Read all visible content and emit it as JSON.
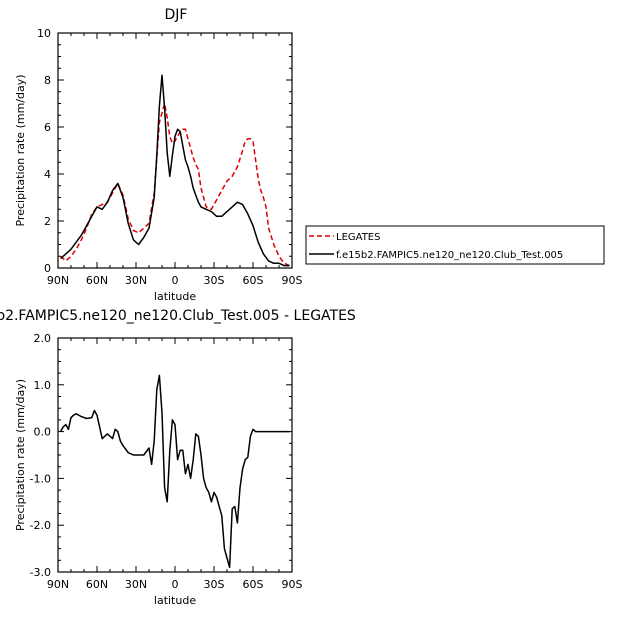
{
  "chart_data": [
    {
      "type": "line",
      "title": "DJF",
      "xlabel": "latitude",
      "ylabel": "Precipitation rate (mm/day)",
      "x_ticks": [
        "90N",
        "60N",
        "30N",
        "0",
        "30S",
        "60S",
        "90S"
      ],
      "y_ticks": [
        "0",
        "2",
        "4",
        "6",
        "8",
        "10"
      ],
      "xlim": [
        90,
        -90
      ],
      "ylim": [
        0,
        10
      ],
      "legend_position": "right-outside",
      "series": [
        {
          "name": "LEGATES",
          "color": "#dd0000",
          "style": "dashed",
          "x": [
            88,
            84,
            80,
            76,
            72,
            68,
            64,
            60,
            56,
            52,
            48,
            44,
            40,
            36,
            32,
            28,
            24,
            20,
            16,
            12,
            8,
            6,
            4,
            2,
            0,
            -2,
            -4,
            -6,
            -8,
            -10,
            -12,
            -14,
            -16,
            -18,
            -20,
            -24,
            -28,
            -32,
            -36,
            -40,
            -44,
            -48,
            -52,
            -54,
            -56,
            -58,
            -60,
            -62,
            -64,
            -66,
            -68,
            -70,
            -72,
            -76,
            -80,
            -84,
            -88
          ],
          "y": [
            0.5,
            0.3,
            0.5,
            0.8,
            1.2,
            1.7,
            2.3,
            2.6,
            2.7,
            2.8,
            3.2,
            3.6,
            3.1,
            2.1,
            1.6,
            1.5,
            1.7,
            1.9,
            3.2,
            6.2,
            7.0,
            6.4,
            5.6,
            5.3,
            5.4,
            5.6,
            5.8,
            5.9,
            5.9,
            5.5,
            5.1,
            4.7,
            4.4,
            4.2,
            3.4,
            2.6,
            2.5,
            2.9,
            3.3,
            3.7,
            3.9,
            4.3,
            5.0,
            5.4,
            5.5,
            5.5,
            5.4,
            4.6,
            3.8,
            3.3,
            3.0,
            2.6,
            1.7,
            1.0,
            0.5,
            0.2,
            0.1
          ]
        },
        {
          "name": "f.e15b2.FAMPIC5.ne120_ne120.Club_Test.005",
          "color": "#000000",
          "style": "solid",
          "x": [
            88,
            84,
            80,
            76,
            72,
            68,
            64,
            60,
            56,
            52,
            48,
            44,
            40,
            36,
            32,
            28,
            24,
            20,
            16,
            14,
            12,
            10,
            8,
            6,
            4,
            2,
            0,
            -2,
            -4,
            -6,
            -8,
            -10,
            -12,
            -14,
            -16,
            -18,
            -20,
            -24,
            -28,
            -32,
            -36,
            -40,
            -44,
            -48,
            -52,
            -56,
            -60,
            -64,
            -68,
            -72,
            -76,
            -80,
            -84,
            -88
          ],
          "y": [
            0.4,
            0.6,
            0.8,
            1.1,
            1.4,
            1.8,
            2.2,
            2.6,
            2.5,
            2.8,
            3.3,
            3.6,
            3.0,
            1.9,
            1.2,
            1.0,
            1.3,
            1.7,
            3.0,
            4.8,
            6.9,
            8.2,
            6.8,
            4.9,
            3.9,
            4.8,
            5.6,
            5.9,
            5.8,
            5.2,
            4.6,
            4.3,
            3.9,
            3.4,
            3.1,
            2.8,
            2.6,
            2.5,
            2.4,
            2.2,
            2.2,
            2.4,
            2.6,
            2.8,
            2.7,
            2.3,
            1.8,
            1.1,
            0.6,
            0.3,
            0.2,
            0.2,
            0.1,
            0.1
          ]
        }
      ]
    },
    {
      "type": "line",
      "title": "b2.FAMPIC5.ne120_ne120.Club_Test.005  -  LEGATES",
      "xlabel": "latitude",
      "ylabel": "Precipitation rate (mm/day)",
      "x_ticks": [
        "90N",
        "60N",
        "30N",
        "0",
        "30S",
        "60S",
        "90S"
      ],
      "y_ticks": [
        "-3.0",
        "-2.0",
        "-1.0",
        "0.0",
        "1.0",
        "2.0"
      ],
      "xlim": [
        90,
        -90
      ],
      "ylim": [
        -3,
        2
      ],
      "series": [
        {
          "color": "#000000",
          "style": "solid",
          "x": [
            88,
            86,
            84,
            82,
            80,
            78,
            76,
            72,
            68,
            64,
            62,
            60,
            56,
            52,
            48,
            46,
            44,
            42,
            40,
            36,
            32,
            28,
            24,
            20,
            18,
            16,
            14,
            12,
            10,
            8,
            6,
            4,
            2,
            0,
            -2,
            -4,
            -6,
            -8,
            -10,
            -12,
            -14,
            -16,
            -18,
            -20,
            -22,
            -24,
            -26,
            -28,
            -30,
            -32,
            -34,
            -36,
            -38,
            -40,
            -42,
            -44,
            -46,
            -48,
            -50,
            -52,
            -54,
            -56,
            -58,
            -60,
            -62,
            -64,
            -66,
            -68,
            -70,
            -72,
            -74,
            -76,
            -78,
            -80,
            -82,
            -84,
            -86,
            -88
          ],
          "y": [
            0.0,
            0.1,
            0.15,
            0.05,
            0.3,
            0.35,
            0.38,
            0.32,
            0.28,
            0.3,
            0.45,
            0.35,
            -0.15,
            -0.05,
            -0.15,
            0.05,
            0.0,
            -0.2,
            -0.3,
            -0.45,
            -0.5,
            -0.5,
            -0.5,
            -0.35,
            -0.7,
            -0.2,
            0.9,
            1.2,
            0.4,
            -1.2,
            -1.5,
            -0.4,
            0.25,
            0.15,
            -0.6,
            -0.4,
            -0.4,
            -0.9,
            -0.7,
            -1.0,
            -0.6,
            -0.05,
            -0.1,
            -0.5,
            -1.0,
            -1.2,
            -1.3,
            -1.5,
            -1.3,
            -1.4,
            -1.6,
            -1.8,
            -2.5,
            -2.7,
            -2.9,
            -1.65,
            -1.6,
            -1.95,
            -1.2,
            -0.8,
            -0.6,
            -0.55,
            -0.1,
            0.05,
            0.0,
            0.0,
            0.0,
            0.0,
            0.0,
            0.0,
            0.0,
            0.0,
            0.0,
            0.0,
            0.0,
            0.0,
            0.0,
            0.0
          ]
        }
      ]
    }
  ]
}
